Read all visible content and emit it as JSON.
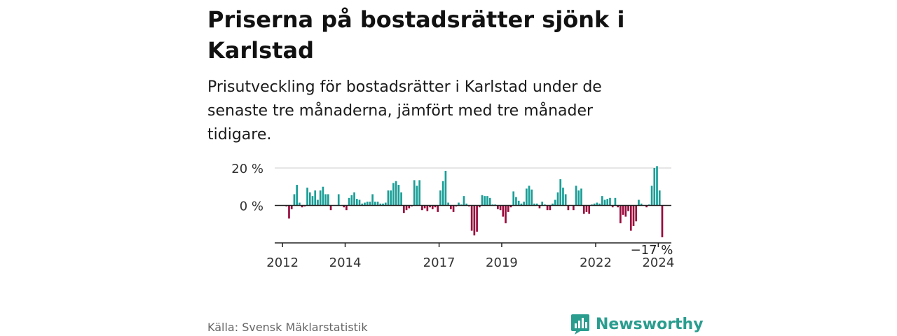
{
  "header": {
    "title": "Priserna på bostadsrätter sjönk i Karlstad",
    "subtitle": "Prisutveckling för bostadsrätter i Karlstad under de senaste tre månaderna, jämfört med tre månader tidigare."
  },
  "footer": {
    "source": "Källa: Svensk Mäklarstatistik",
    "brand": "Newsworthy"
  },
  "colors": {
    "positive": "#1a9e97",
    "negative": "#990a3c",
    "grid": "#dddddd",
    "axis": "#222222",
    "brand": "#2a9d8f"
  },
  "chart_data": {
    "type": "bar",
    "title": "Priserna på bostadsrätter sjönk i Karlstad",
    "subtitle": "Prisutveckling för bostadsrätter i Karlstad under de senaste tre månaderna, jämfört med tre månader tidigare.",
    "xlabel": "",
    "ylabel": "",
    "unit": "%",
    "x_start": {
      "year": 2011,
      "month": 10
    },
    "x_end": {
      "year": 2024,
      "month": 6
    },
    "ylim": [
      -20,
      21
    ],
    "y_ticks": [
      {
        "value": 0,
        "label": "0 %"
      },
      {
        "value": 20,
        "label": "20 %"
      }
    ],
    "x_ticks": [
      {
        "value": 2012,
        "label": "2012"
      },
      {
        "value": 2014,
        "label": "2014"
      },
      {
        "value": 2017,
        "label": "2017"
      },
      {
        "value": 2019,
        "label": "2019"
      },
      {
        "value": 2022,
        "label": "2022"
      },
      {
        "value": 2024,
        "label": "2024"
      }
    ],
    "last_value_label": "−17 %",
    "values": [
      0,
      0,
      0,
      0,
      -0.5,
      -7,
      -2,
      6,
      11,
      1.5,
      -1,
      -0.5,
      9.5,
      7,
      5,
      8,
      3,
      8,
      10,
      6,
      6,
      -2.5,
      0,
      0,
      6,
      0,
      -1,
      -2.5,
      4,
      5.5,
      7,
      3.5,
      3,
      1,
      1.5,
      2,
      2,
      6,
      2,
      2,
      1,
      1,
      1.5,
      8,
      8,
      12,
      13,
      11,
      7,
      -4,
      -2.5,
      -1.5,
      -0.5,
      13.5,
      10.5,
      13.5,
      -2.5,
      -1.5,
      -3,
      -1,
      -2,
      -1,
      -3.5,
      8,
      13,
      18.5,
      1.5,
      -2,
      -3.5,
      -0.5,
      1.5,
      0.5,
      5,
      1,
      -0.5,
      -13.5,
      -16,
      -14,
      -1,
      5.5,
      5,
      5,
      4,
      0.5,
      0.5,
      -2,
      -2.5,
      -6,
      -9.5,
      -3.5,
      -1,
      7.5,
      4.5,
      2.5,
      1,
      2,
      9,
      10.5,
      8.5,
      1,
      1,
      -1.5,
      2,
      0.5,
      -2.5,
      -2.5,
      1,
      3,
      7,
      14,
      9.5,
      6,
      -2.5,
      0,
      -2.5,
      10.5,
      8,
      9,
      -4.5,
      -3.5,
      -4.5,
      0.5,
      1,
      1.5,
      1,
      5,
      3,
      3.5,
      4,
      -1,
      4,
      -1,
      -9.5,
      -5,
      -6,
      -3,
      -13.5,
      -11,
      -8.5,
      3,
      1,
      0,
      -1,
      0.5,
      10.5,
      20,
      21,
      8,
      -17,
      0,
      0,
      0
    ]
  }
}
